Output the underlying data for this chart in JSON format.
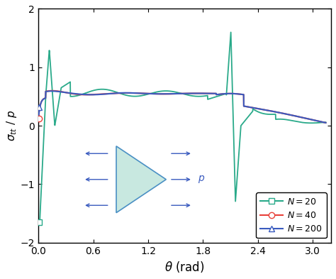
{
  "title": "",
  "xlabel": "$\\theta$ (rad)",
  "ylabel": "$\\sigma_{tt}$ / $p$",
  "xlim": [
    0,
    3.2
  ],
  "ylim": [
    -2,
    2
  ],
  "xticks": [
    0,
    0.6,
    1.2,
    1.8,
    2.4,
    3.0
  ],
  "yticks": [
    -2,
    -1,
    0,
    1,
    2
  ],
  "background_color": "#ffffff",
  "teal_color": "#2aaa8a",
  "red_color": "#e8413a",
  "blue_color": "#3a5bbf",
  "legend_labels": [
    "$N = 20$",
    "$N = 40$",
    "$N = 200$"
  ],
  "triangle_fill": "#c8e8e0",
  "triangle_edge": "#4a90c4",
  "arrow_color": "#3a5bbf",
  "label_p_color": "#3a5bbf"
}
